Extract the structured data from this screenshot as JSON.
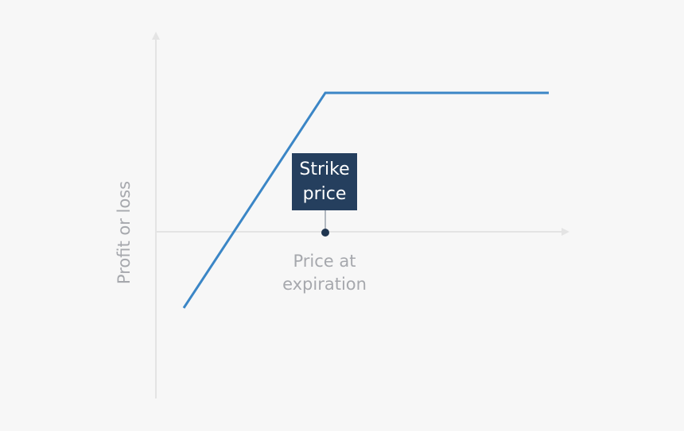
{
  "y_axis": {
    "label": "Profit or loss"
  },
  "x_axis": {
    "label_lines": [
      "Price at",
      "expiration"
    ]
  },
  "strike": {
    "label_lines": [
      "Strike",
      "price"
    ]
  }
}
